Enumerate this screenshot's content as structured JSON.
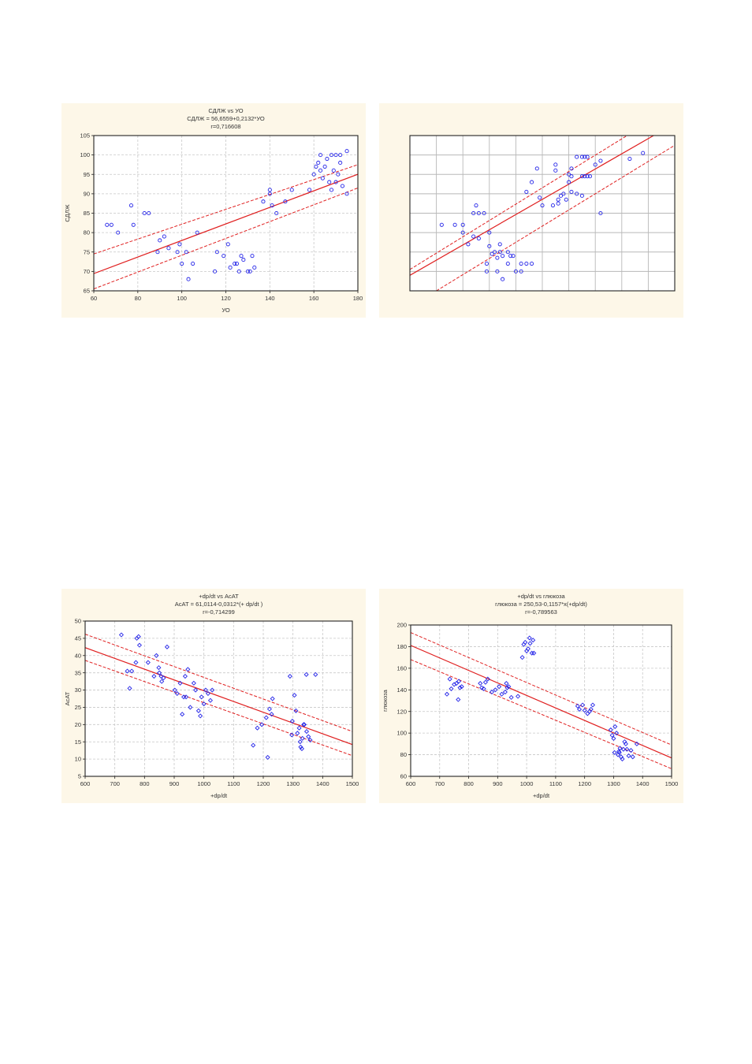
{
  "chart_data": [
    {
      "type": "scatter",
      "title": "СДЛЖ vs УО",
      "subtitle": "СДЛЖ = 56,6559+0,2132*УО",
      "r_label": "r=0,716608",
      "xlabel": "УО",
      "ylabel": "СДЛЖ",
      "xlim": [
        60,
        180
      ],
      "ylim": [
        65,
        105
      ],
      "xticks": [
        60,
        80,
        100,
        120,
        140,
        160,
        180
      ],
      "yticks": [
        65,
        70,
        75,
        80,
        85,
        90,
        95,
        100,
        105
      ],
      "grid": true,
      "marker": "circle",
      "points_color": "#2424e8",
      "line_color": "#e02020",
      "fit": {
        "intercept": 56.6559,
        "slope": 0.2132
      },
      "band": {
        "lo_left": 65.5,
        "lo_right": 91.5,
        "hi_left": 74.5,
        "hi_right": 97.5
      },
      "points": [
        [
          66,
          82
        ],
        [
          68,
          82
        ],
        [
          71,
          80
        ],
        [
          77,
          87
        ],
        [
          78,
          82
        ],
        [
          83,
          85
        ],
        [
          85,
          85
        ],
        [
          89,
          75
        ],
        [
          90,
          78
        ],
        [
          92,
          79
        ],
        [
          94,
          76
        ],
        [
          98,
          75
        ],
        [
          99,
          77
        ],
        [
          100,
          72
        ],
        [
          102,
          75
        ],
        [
          103,
          68
        ],
        [
          105,
          72
        ],
        [
          107,
          80
        ],
        [
          115,
          70
        ],
        [
          116,
          75
        ],
        [
          119,
          74
        ],
        [
          121,
          77
        ],
        [
          122,
          71
        ],
        [
          124,
          72
        ],
        [
          125,
          72
        ],
        [
          126,
          70
        ],
        [
          127,
          74
        ],
        [
          128,
          73
        ],
        [
          130,
          70
        ],
        [
          131,
          70
        ],
        [
          132,
          74
        ],
        [
          133,
          71
        ],
        [
          137,
          88
        ],
        [
          140,
          91
        ],
        [
          140,
          90
        ],
        [
          141,
          87
        ],
        [
          143,
          85
        ],
        [
          147,
          88
        ],
        [
          150,
          91
        ],
        [
          158,
          91
        ],
        [
          160,
          95
        ],
        [
          161,
          97
        ],
        [
          162,
          98
        ],
        [
          163,
          96
        ],
        [
          163,
          100
        ],
        [
          164,
          94
        ],
        [
          165,
          97
        ],
        [
          166,
          99
        ],
        [
          167,
          93
        ],
        [
          168,
          91
        ],
        [
          168,
          100
        ],
        [
          169,
          96
        ],
        [
          170,
          93
        ],
        [
          170,
          100
        ],
        [
          171,
          95
        ],
        [
          172,
          98
        ],
        [
          172,
          100
        ],
        [
          173,
          92
        ],
        [
          175,
          101
        ],
        [
          175,
          90
        ]
      ]
    },
    {
      "type": "scatter",
      "title": "",
      "xlim": [
        0,
        10
      ],
      "ylim": [
        0,
        8
      ],
      "grid": true,
      "marker": "circle",
      "points_color": "#2424e8",
      "line_color": "#e02020",
      "fit_endpoints": [
        [
          0,
          0.8
        ],
        [
          9.2,
          8
        ]
      ],
      "band_lo": [
        [
          1,
          0
        ],
        [
          10,
          7.5
        ]
      ],
      "band_hi": [
        [
          0,
          1.1
        ],
        [
          8.2,
          8
        ]
      ],
      "points": [
        [
          1.2,
          3.4
        ],
        [
          1.7,
          3.4
        ],
        [
          2.0,
          3.4
        ],
        [
          2.0,
          3.0
        ],
        [
          2.2,
          2.4
        ],
        [
          2.4,
          2.8
        ],
        [
          2.4,
          4.0
        ],
        [
          2.5,
          4.4
        ],
        [
          2.6,
          4.0
        ],
        [
          2.6,
          2.7
        ],
        [
          2.8,
          4.0
        ],
        [
          2.9,
          1.4
        ],
        [
          2.9,
          1.0
        ],
        [
          3.0,
          3.0
        ],
        [
          3.0,
          2.3
        ],
        [
          3.1,
          1.9
        ],
        [
          3.2,
          2.0
        ],
        [
          3.3,
          1.7
        ],
        [
          3.3,
          1.0
        ],
        [
          3.4,
          2.4
        ],
        [
          3.4,
          2.0
        ],
        [
          3.5,
          1.8
        ],
        [
          3.5,
          0.6
        ],
        [
          3.7,
          1.4
        ],
        [
          3.7,
          2.0
        ],
        [
          3.8,
          1.8
        ],
        [
          3.9,
          1.8
        ],
        [
          4.0,
          1.0
        ],
        [
          4.2,
          1.4
        ],
        [
          4.2,
          1.0
        ],
        [
          4.4,
          1.4
        ],
        [
          4.6,
          1.4
        ],
        [
          4.4,
          5.1
        ],
        [
          4.6,
          5.6
        ],
        [
          4.8,
          6.3
        ],
        [
          4.9,
          4.8
        ],
        [
          5.0,
          4.4
        ],
        [
          5.4,
          4.4
        ],
        [
          5.5,
          6.2
        ],
        [
          5.5,
          6.5
        ],
        [
          5.6,
          4.7
        ],
        [
          5.6,
          4.5
        ],
        [
          5.7,
          4.9
        ],
        [
          5.8,
          5.0
        ],
        [
          5.9,
          4.7
        ],
        [
          6.0,
          5.6
        ],
        [
          6.0,
          6.0
        ],
        [
          6.1,
          6.3
        ],
        [
          6.1,
          5.9
        ],
        [
          6.1,
          5.1
        ],
        [
          6.3,
          6.9
        ],
        [
          6.3,
          5.0
        ],
        [
          6.5,
          5.9
        ],
        [
          6.5,
          4.9
        ],
        [
          6.5,
          6.9
        ],
        [
          6.6,
          6.9
        ],
        [
          6.6,
          5.9
        ],
        [
          6.7,
          6.9
        ],
        [
          6.7,
          5.9
        ],
        [
          6.8,
          5.9
        ],
        [
          7.0,
          6.5
        ],
        [
          7.2,
          6.7
        ],
        [
          7.2,
          4.0
        ],
        [
          8.3,
          6.8
        ],
        [
          8.8,
          7.1
        ]
      ]
    },
    {
      "type": "scatter",
      "title": "+dp/dt vs  АсАТ",
      "subtitle": "АсАТ = 61,0114-0,0312*(+    dp/dt )",
      "r_label": "r=-0,714299",
      "xlabel": "+dp/dt",
      "ylabel": "АсАТ",
      "xlim": [
        600,
        1500
      ],
      "ylim": [
        5,
        50
      ],
      "xticks": [
        600,
        700,
        800,
        900,
        1000,
        1100,
        1200,
        1300,
        1400,
        1500
      ],
      "yticks": [
        5,
        10,
        15,
        20,
        25,
        30,
        35,
        40,
        45,
        50
      ],
      "grid": true,
      "marker": "diamond",
      "points_color": "#2424e8",
      "line_color": "#e02020",
      "fit": {
        "intercept": 61.0114,
        "slope": -0.0312
      },
      "band": {
        "lo_left": 38.6,
        "lo_right": 11.0,
        "hi_left": 46.2,
        "hi_right": 18.0
      },
      "points": [
        [
          722,
          46
        ],
        [
          742,
          35.5
        ],
        [
          750,
          30.5
        ],
        [
          757,
          35.5
        ],
        [
          771,
          38
        ],
        [
          774,
          45
        ],
        [
          780,
          45.5
        ],
        [
          783,
          43
        ],
        [
          812,
          38
        ],
        [
          832,
          34
        ],
        [
          840,
          40
        ],
        [
          848,
          36.5
        ],
        [
          850,
          35
        ],
        [
          856,
          34
        ],
        [
          858,
          32.5
        ],
        [
          864,
          33.5
        ],
        [
          876,
          42.5
        ],
        [
          902,
          30
        ],
        [
          910,
          29
        ],
        [
          920,
          32
        ],
        [
          927,
          23
        ],
        [
          932,
          28
        ],
        [
          937,
          34
        ],
        [
          940,
          28
        ],
        [
          946,
          36
        ],
        [
          954,
          25
        ],
        [
          966,
          32
        ],
        [
          972,
          30
        ],
        [
          982,
          24
        ],
        [
          988,
          22.5
        ],
        [
          992,
          28
        ],
        [
          1000,
          26
        ],
        [
          1006,
          30
        ],
        [
          1014,
          29
        ],
        [
          1022,
          27
        ],
        [
          1028,
          30
        ],
        [
          1166,
          14
        ],
        [
          1180,
          19
        ],
        [
          1195,
          20
        ],
        [
          1210,
          22
        ],
        [
          1215,
          10.5
        ],
        [
          1221,
          24.5
        ],
        [
          1228,
          23
        ],
        [
          1231,
          27.5
        ],
        [
          1290,
          34
        ],
        [
          1296,
          17
        ],
        [
          1298,
          21
        ],
        [
          1305,
          28.5
        ],
        [
          1310,
          24
        ],
        [
          1315,
          17.5
        ],
        [
          1321,
          19
        ],
        [
          1324,
          15
        ],
        [
          1326,
          13.5
        ],
        [
          1330,
          13
        ],
        [
          1332,
          16
        ],
        [
          1336,
          20
        ],
        [
          1338,
          20
        ],
        [
          1345,
          34.5
        ],
        [
          1346,
          18
        ],
        [
          1352,
          16.5
        ],
        [
          1358,
          15.5
        ],
        [
          1376,
          34.5
        ]
      ]
    },
    {
      "type": "scatter",
      "title": "+dp/dt vs глюкоза",
      "subtitle": "глюкоза = 250,53-0,1157*x(+dp/dt)",
      "r_label": "r=-0,789563",
      "xlabel": "+dp/dt",
      "ylabel": "глюкоза",
      "xlim": [
        600,
        1500
      ],
      "ylim": [
        60,
        200
      ],
      "xticks": [
        600,
        700,
        800,
        900,
        1000,
        1100,
        1200,
        1300,
        1400,
        1500
      ],
      "yticks": [
        60,
        80,
        100,
        120,
        140,
        160,
        180,
        200
      ],
      "grid": true,
      "marker": "diamond",
      "points_color": "#2424e8",
      "line_color": "#e02020",
      "fit": {
        "intercept": 250.53,
        "slope": -0.1157
      },
      "band": {
        "lo_left": 168,
        "lo_right": 67,
        "hi_left": 193,
        "hi_right": 89
      },
      "points": [
        [
          725,
          136
        ],
        [
          735,
          150
        ],
        [
          740,
          141
        ],
        [
          750,
          145
        ],
        [
          758,
          146
        ],
        [
          764,
          131
        ],
        [
          766,
          148
        ],
        [
          770,
          142
        ],
        [
          776,
          143
        ],
        [
          840,
          146
        ],
        [
          845,
          142
        ],
        [
          852,
          141
        ],
        [
          858,
          147
        ],
        [
          866,
          150
        ],
        [
          880,
          138
        ],
        [
          892,
          140
        ],
        [
          905,
          143
        ],
        [
          914,
          136
        ],
        [
          926,
          138
        ],
        [
          930,
          146
        ],
        [
          933,
          142
        ],
        [
          938,
          143
        ],
        [
          947,
          133
        ],
        [
          970,
          134
        ],
        [
          985,
          170
        ],
        [
          990,
          182
        ],
        [
          995,
          184
        ],
        [
          1000,
          176
        ],
        [
          1005,
          178
        ],
        [
          1010,
          188
        ],
        [
          1012,
          183
        ],
        [
          1018,
          174
        ],
        [
          1022,
          186
        ],
        [
          1025,
          174
        ],
        [
          1176,
          125
        ],
        [
          1182,
          122
        ],
        [
          1193,
          126
        ],
        [
          1200,
          121
        ],
        [
          1210,
          118
        ],
        [
          1217,
          120
        ],
        [
          1222,
          122
        ],
        [
          1228,
          126
        ],
        [
          1290,
          103
        ],
        [
          1295,
          98
        ],
        [
          1300,
          95
        ],
        [
          1303,
          82
        ],
        [
          1305,
          106
        ],
        [
          1310,
          100
        ],
        [
          1315,
          80
        ],
        [
          1318,
          83
        ],
        [
          1320,
          82
        ],
        [
          1322,
          86
        ],
        [
          1326,
          78
        ],
        [
          1330,
          76
        ],
        [
          1334,
          85
        ],
        [
          1338,
          92
        ],
        [
          1342,
          90
        ],
        [
          1346,
          85
        ],
        [
          1352,
          79
        ],
        [
          1360,
          84
        ],
        [
          1366,
          78
        ],
        [
          1380,
          90
        ]
      ]
    }
  ]
}
